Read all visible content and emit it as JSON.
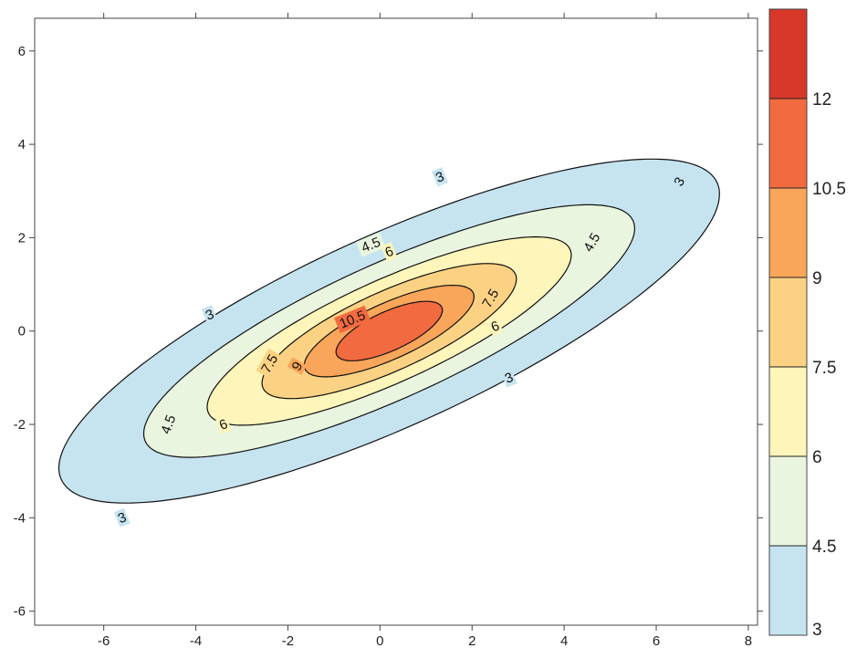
{
  "chart_data": {
    "type": "contour",
    "title": "",
    "xlabel": "",
    "ylabel": "",
    "xlim": [
      -7.5,
      8.2
    ],
    "ylim": [
      -6.3,
      6.7
    ],
    "x_ticks": [
      "-6",
      "-4",
      "-2",
      "0",
      "2",
      "4",
      "6",
      "8"
    ],
    "y_ticks": [
      "-6",
      "-4",
      "-2",
      "0",
      "2",
      "4",
      "6"
    ],
    "x_tick_values": [
      -6,
      -4,
      -2,
      0,
      2,
      4,
      6,
      8
    ],
    "y_tick_values": [
      -6,
      -4,
      -2,
      0,
      2,
      4,
      6
    ],
    "grid": false,
    "center": [
      0.2,
      0.0
    ],
    "tilt_degrees": 24,
    "levels": [
      {
        "value": 3,
        "label": "3",
        "semi_major": 7.8,
        "semi_minor": 2.05
      },
      {
        "value": 4.5,
        "label": "4.5",
        "semi_major": 5.8,
        "semi_minor": 1.45
      },
      {
        "value": 6,
        "label": "6",
        "semi_major": 4.3,
        "semi_minor": 1.1
      },
      {
        "value": 7.5,
        "label": "7.5",
        "semi_major": 3.0,
        "semi_minor": 0.85
      },
      {
        "value": 9,
        "label": "9",
        "semi_major": 2.0,
        "semi_minor": 0.6
      },
      {
        "value": 10.5,
        "label": "10.5",
        "semi_major": 1.25,
        "semi_minor": 0.42
      }
    ],
    "contour_labels": [
      {
        "text": "3",
        "x": 1.3,
        "y": 3.3,
        "angle": -22
      },
      {
        "text": "3",
        "x": 6.5,
        "y": 3.2,
        "angle": -60
      },
      {
        "text": "3",
        "x": -3.7,
        "y": 0.35,
        "angle": -22
      },
      {
        "text": "3",
        "x": 2.8,
        "y": -1.0,
        "angle": -22
      },
      {
        "text": "3",
        "x": -5.6,
        "y": -4.0,
        "angle": -22
      },
      {
        "text": "4.5",
        "x": -0.2,
        "y": 1.85,
        "angle": -22
      },
      {
        "text": "4.5",
        "x": 4.6,
        "y": 1.9,
        "angle": -60
      },
      {
        "text": "4.5",
        "x": -4.6,
        "y": -2.0,
        "angle": -70
      },
      {
        "text": "6",
        "x": 0.2,
        "y": 1.7,
        "angle": -22
      },
      {
        "text": "6",
        "x": 2.5,
        "y": 0.1,
        "angle": -22
      },
      {
        "text": "6",
        "x": -3.4,
        "y": -2.0,
        "angle": -22
      },
      {
        "text": "7.5",
        "x": 2.4,
        "y": 0.7,
        "angle": -60
      },
      {
        "text": "7.5",
        "x": -2.4,
        "y": -0.7,
        "angle": -60
      },
      {
        "text": "9",
        "x": -1.8,
        "y": -0.75,
        "angle": -60
      },
      {
        "text": "10.5",
        "x": -0.6,
        "y": 0.25,
        "angle": -22
      }
    ],
    "colorbar": {
      "bounds": [
        3,
        4.5,
        6,
        7.5,
        9,
        10.5,
        12,
        13.5
      ],
      "tick_labels": [
        "3",
        "4.5",
        "6",
        "7.5",
        "9",
        "10.5",
        "12"
      ],
      "colors": [
        "#c6e4f0",
        "#e9f5df",
        "#fdf5b9",
        "#fbd283",
        "#f9a55a",
        "#f26a3f",
        "#d7382a"
      ]
    }
  }
}
